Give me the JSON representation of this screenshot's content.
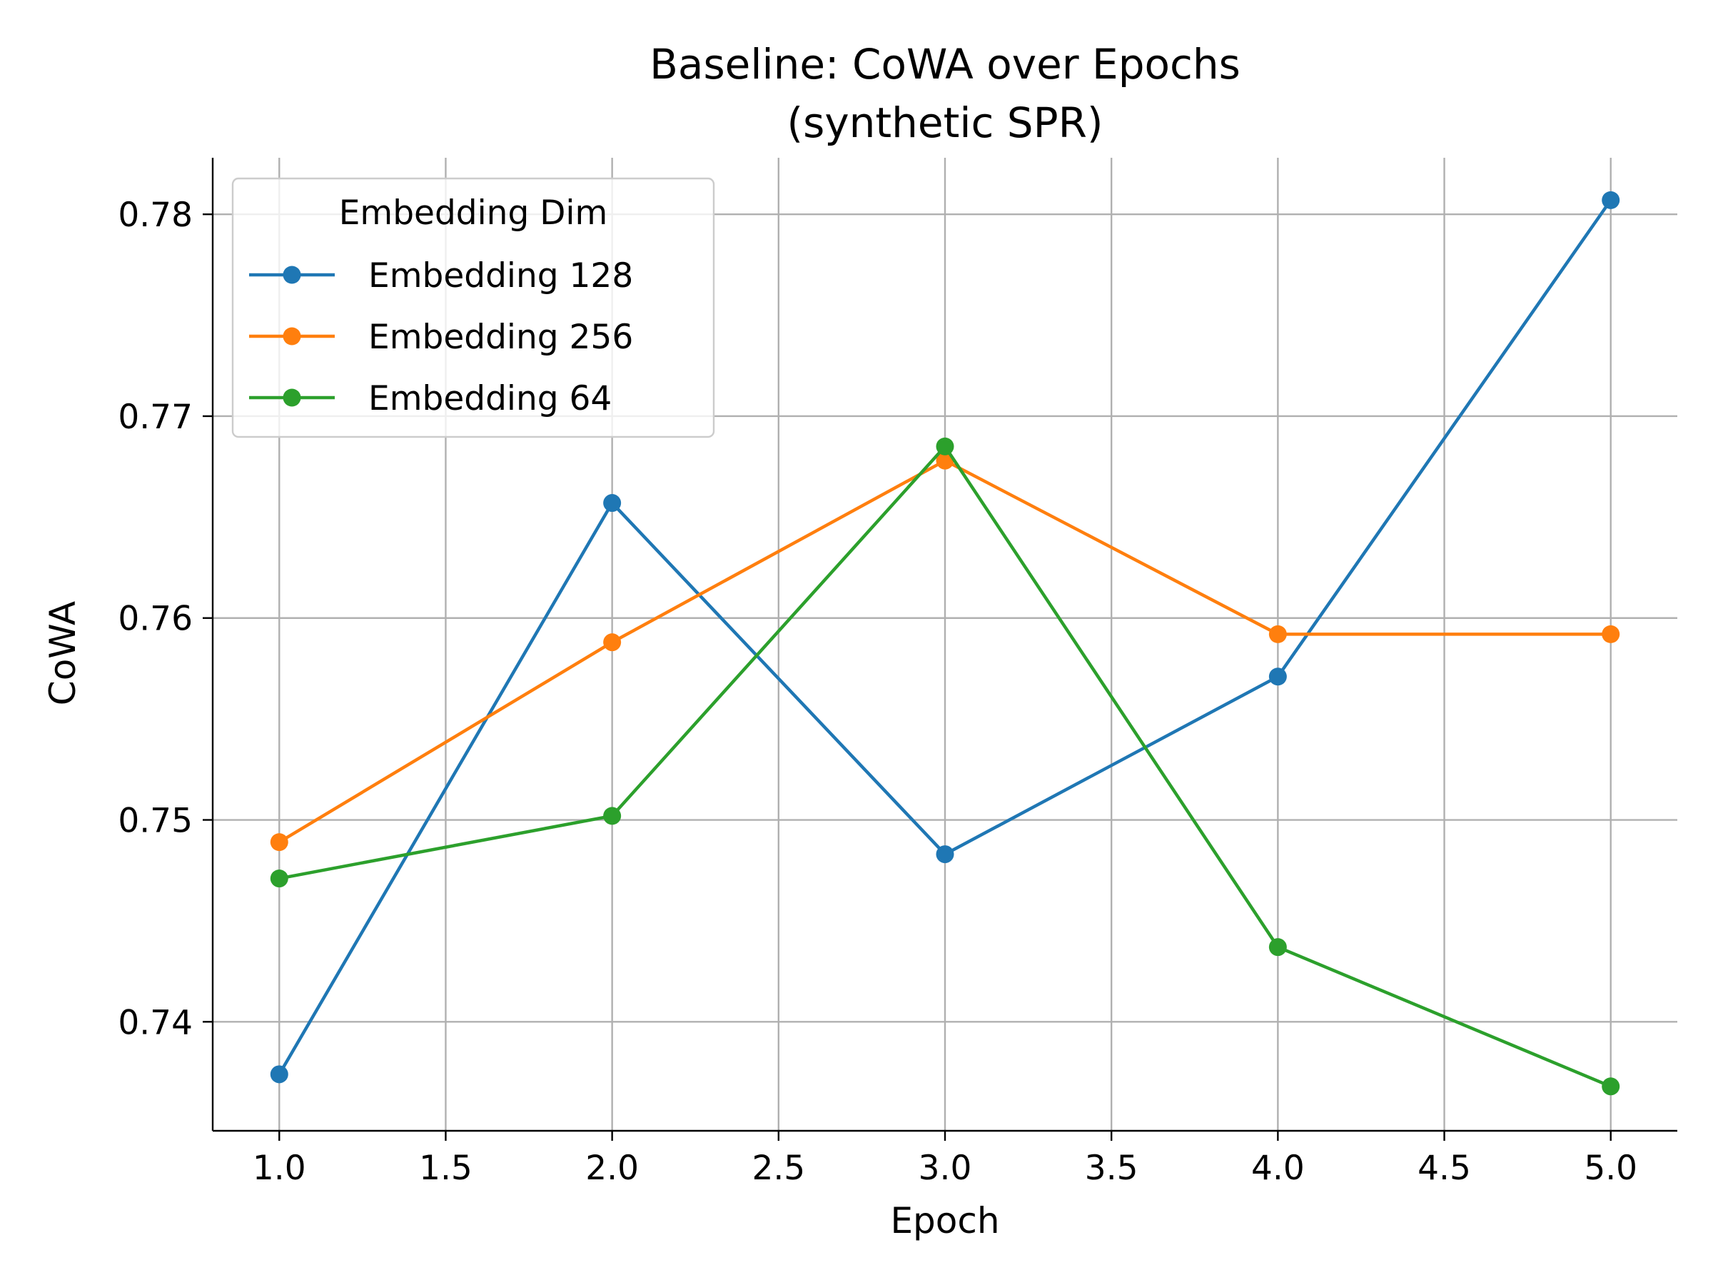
{
  "chart_data": {
    "type": "line",
    "title_lines": [
      "Baseline: CoWA over Epochs",
      "(synthetic SPR)"
    ],
    "xlabel": "Epoch",
    "ylabel": "CoWA",
    "xlim": [
      0.8,
      5.2
    ],
    "ylim": [
      0.7346,
      0.7828
    ],
    "x_ticks": [
      1.0,
      1.5,
      2.0,
      2.5,
      3.0,
      3.5,
      4.0,
      4.5,
      5.0
    ],
    "x_tick_labels": [
      "1.0",
      "1.5",
      "2.0",
      "2.5",
      "3.0",
      "3.5",
      "4.0",
      "4.5",
      "5.0"
    ],
    "y_ticks": [
      0.74,
      0.75,
      0.76,
      0.77,
      0.78
    ],
    "y_tick_labels": [
      "0.74",
      "0.75",
      "0.76",
      "0.77",
      "0.78"
    ],
    "grid": true,
    "legend": {
      "title": "Embedding Dim",
      "placement": "top-left"
    },
    "x": [
      1,
      2,
      3,
      4,
      5
    ],
    "series": [
      {
        "name": "Embedding 128",
        "color": "#1f77b4",
        "values": [
          0.7374,
          0.7657,
          0.7483,
          0.7571,
          0.7807
        ]
      },
      {
        "name": "Embedding 256",
        "color": "#ff7f0e",
        "values": [
          0.7489,
          0.7588,
          0.7678,
          0.7592,
          0.7592
        ]
      },
      {
        "name": "Embedding 64",
        "color": "#2ca02c",
        "values": [
          0.7471,
          0.7502,
          0.7685,
          0.7437,
          0.7368
        ]
      }
    ]
  }
}
